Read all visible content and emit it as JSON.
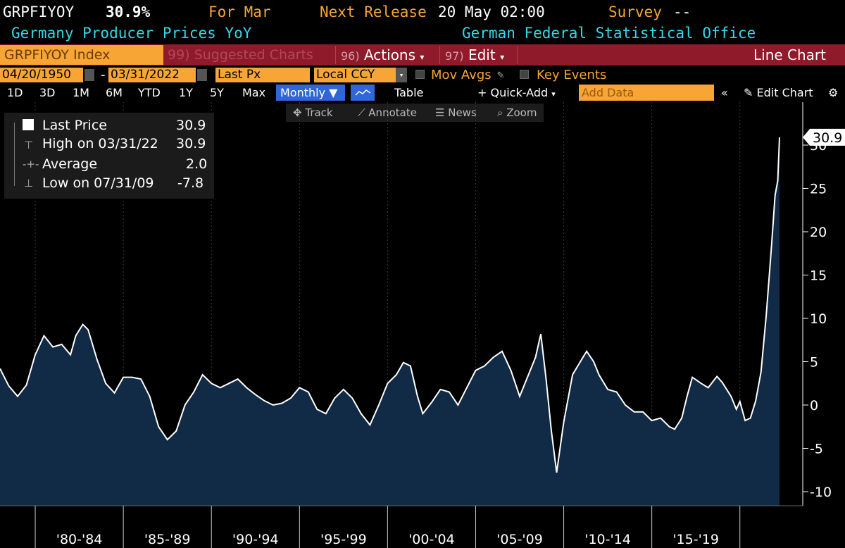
{
  "header": {
    "ticker": "GRPFIYOY",
    "value": "30.9%",
    "for_period": "For Mar",
    "next_release_label": "Next Release",
    "next_release_value": "20 May 02:00",
    "survey_label": "Survey",
    "survey_value": "--",
    "series_name": "Germany Producer Prices YoY",
    "source": "German Federal Statistical Office"
  },
  "toolbar": {
    "index_label": "GRPFIYOY Index",
    "suggested_label": "Suggested Charts",
    "suggested_num": "99)",
    "actions_num": "96)",
    "actions_label": "Actions",
    "edit_num": "97)",
    "edit_label": "Edit",
    "chart_type": "Line Chart"
  },
  "range": {
    "start_date": "04/20/1950",
    "dash": "-",
    "end_date": "03/31/2022",
    "price_field": "Last Px",
    "currency": "Local CCY",
    "mov_avgs": "Mov Avgs",
    "key_events": "Key Events"
  },
  "periods": [
    "1D",
    "3D",
    "1M",
    "6M",
    "YTD",
    "1Y",
    "5Y",
    "Max"
  ],
  "frequency": "Monthly",
  "table_label": "Table",
  "quick_add": "Quick-Add",
  "add_data_placeholder": "Add Data",
  "edit_chart": "Edit Chart",
  "tools": [
    "Track",
    "Annotate",
    "News",
    "Zoom"
  ],
  "legend": {
    "last_label": "Last Price",
    "last_value": "30.9",
    "high_label": "High on 03/31/22",
    "high_value": "30.9",
    "avg_label": "Average",
    "avg_value": "2.0",
    "low_label": "Low on 07/31/09",
    "low_value": "-7.8"
  },
  "colors": {
    "accent_orange": "#f7a535",
    "header_cyan": "#35d7e8",
    "toolbar_red": "#8e1a2a",
    "area_fill": "#112a45",
    "line": "#ffffff"
  },
  "chart_data": {
    "type": "area",
    "title": "Germany Producer Prices YoY",
    "ylabel": "",
    "xlabel": "",
    "ylim": [
      -12,
      34
    ],
    "yticks": [
      -10,
      -5,
      0,
      5,
      10,
      15,
      20,
      25,
      30
    ],
    "last_value_label": "30.9",
    "x_period_labels": [
      "'80-'84",
      "'85-'89",
      "'90-'94",
      "'95-'99",
      "'00-'04",
      "'05-'09",
      "'10-'14",
      "'15-'19"
    ],
    "x_range": [
      1978.0,
      2022.25
    ],
    "points": [
      [
        1978.0,
        4.2
      ],
      [
        1978.5,
        2.2
      ],
      [
        1979.0,
        1.0
      ],
      [
        1979.5,
        2.3
      ],
      [
        1980.0,
        5.8
      ],
      [
        1980.5,
        8.0
      ],
      [
        1981.0,
        6.7
      ],
      [
        1981.5,
        7.0
      ],
      [
        1982.0,
        5.8
      ],
      [
        1982.3,
        8.0
      ],
      [
        1982.7,
        9.3
      ],
      [
        1983.0,
        8.7
      ],
      [
        1983.5,
        5.3
      ],
      [
        1984.0,
        2.5
      ],
      [
        1984.5,
        1.4
      ],
      [
        1985.0,
        3.2
      ],
      [
        1985.5,
        3.2
      ],
      [
        1986.0,
        3.0
      ],
      [
        1986.5,
        1.0
      ],
      [
        1987.0,
        -2.5
      ],
      [
        1987.5,
        -4.0
      ],
      [
        1988.0,
        -3.0
      ],
      [
        1988.5,
        0.0
      ],
      [
        1989.0,
        1.5
      ],
      [
        1989.5,
        3.5
      ],
      [
        1990.0,
        2.5
      ],
      [
        1990.5,
        2.0
      ],
      [
        1991.0,
        2.5
      ],
      [
        1991.5,
        3.0
      ],
      [
        1992.0,
        2.0
      ],
      [
        1992.5,
        1.2
      ],
      [
        1993.0,
        0.5
      ],
      [
        1993.5,
        0.0
      ],
      [
        1994.0,
        0.2
      ],
      [
        1994.5,
        0.8
      ],
      [
        1995.0,
        2.0
      ],
      [
        1995.5,
        1.5
      ],
      [
        1996.0,
        -0.5
      ],
      [
        1996.5,
        -1.0
      ],
      [
        1997.0,
        0.8
      ],
      [
        1997.5,
        1.8
      ],
      [
        1998.0,
        0.8
      ],
      [
        1998.5,
        -1.0
      ],
      [
        1999.0,
        -2.3
      ],
      [
        1999.5,
        0.0
      ],
      [
        2000.0,
        2.5
      ],
      [
        2000.5,
        3.5
      ],
      [
        2000.9,
        4.9
      ],
      [
        2001.3,
        4.5
      ],
      [
        2001.7,
        1.0
      ],
      [
        2002.0,
        -1.0
      ],
      [
        2002.5,
        0.3
      ],
      [
        2003.0,
        1.8
      ],
      [
        2003.5,
        1.5
      ],
      [
        2004.0,
        0.0
      ],
      [
        2004.5,
        2.0
      ],
      [
        2005.0,
        4.0
      ],
      [
        2005.5,
        4.5
      ],
      [
        2006.0,
        5.5
      ],
      [
        2006.5,
        6.2
      ],
      [
        2007.0,
        4.0
      ],
      [
        2007.5,
        1.0
      ],
      [
        2008.0,
        3.5
      ],
      [
        2008.4,
        5.5
      ],
      [
        2008.7,
        8.2
      ],
      [
        2009.0,
        3.0
      ],
      [
        2009.3,
        -3.0
      ],
      [
        2009.6,
        -7.8
      ],
      [
        2010.0,
        -2.0
      ],
      [
        2010.5,
        3.5
      ],
      [
        2011.0,
        5.2
      ],
      [
        2011.3,
        6.2
      ],
      [
        2011.7,
        5.0
      ],
      [
        2012.0,
        3.5
      ],
      [
        2012.5,
        1.8
      ],
      [
        2013.0,
        1.5
      ],
      [
        2013.5,
        0.0
      ],
      [
        2014.0,
        -0.8
      ],
      [
        2014.5,
        -0.8
      ],
      [
        2015.0,
        -1.8
      ],
      [
        2015.5,
        -1.5
      ],
      [
        2016.0,
        -2.5
      ],
      [
        2016.3,
        -2.8
      ],
      [
        2016.7,
        -1.5
      ],
      [
        2017.0,
        1.0
      ],
      [
        2017.3,
        3.2
      ],
      [
        2017.8,
        2.5
      ],
      [
        2018.2,
        2.0
      ],
      [
        2018.7,
        3.3
      ],
      [
        2019.0,
        2.6
      ],
      [
        2019.5,
        1.0
      ],
      [
        2019.8,
        -0.5
      ],
      [
        2020.0,
        0.4
      ],
      [
        2020.3,
        -1.8
      ],
      [
        2020.6,
        -1.5
      ],
      [
        2020.9,
        0.5
      ],
      [
        2021.2,
        3.8
      ],
      [
        2021.5,
        10.4
      ],
      [
        2021.8,
        18.4
      ],
      [
        2022.0,
        24.2
      ],
      [
        2022.15,
        25.9
      ],
      [
        2022.25,
        30.9
      ]
    ]
  }
}
